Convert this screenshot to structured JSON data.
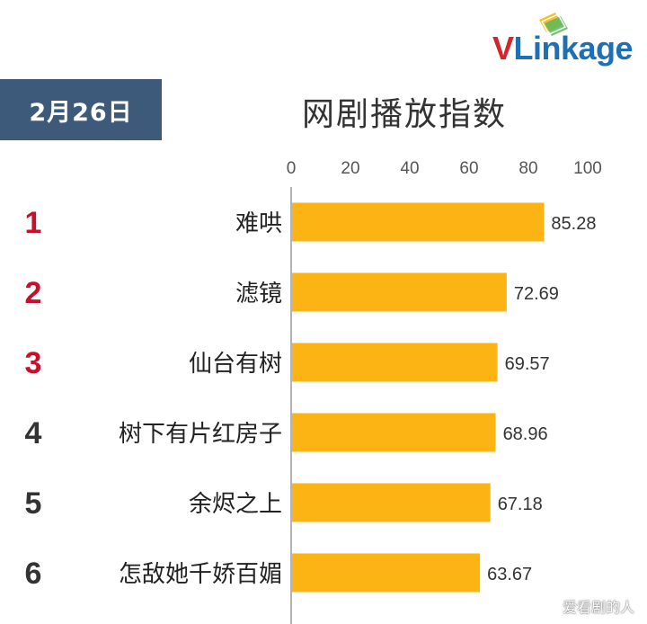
{
  "brand": {
    "logo_text_v": "V",
    "logo_text_rest": "Linkage",
    "accent_red": "#d7242a",
    "accent_blue": "#1e6fb3"
  },
  "date_badge": "2月26日",
  "colors": {
    "bar": "#fbb413",
    "badge_bg": "#3d5a7a",
    "rank_top3": "#c8102e",
    "rank_other": "#333333",
    "axis": "#9a9a9a"
  },
  "watermark": "爱看剧的人",
  "chart_data": {
    "type": "bar",
    "orientation": "horizontal",
    "title": "网剧播放指数",
    "xlim": [
      0,
      100
    ],
    "ticks": [
      0,
      20,
      40,
      60,
      80,
      100
    ],
    "tick_position": "top",
    "ranks": [
      "1",
      "2",
      "3",
      "4",
      "5",
      "6"
    ],
    "categories": [
      "难哄",
      "滤镜",
      "仙台有树",
      "树下有片红房子",
      "余烬之上",
      "怎敌她千娇百媚"
    ],
    "values": [
      85.28,
      72.69,
      69.57,
      68.96,
      67.18,
      63.67
    ],
    "value_labels": [
      "85.28",
      "72.69",
      "69.57",
      "68.96",
      "67.18",
      "63.67"
    ]
  }
}
